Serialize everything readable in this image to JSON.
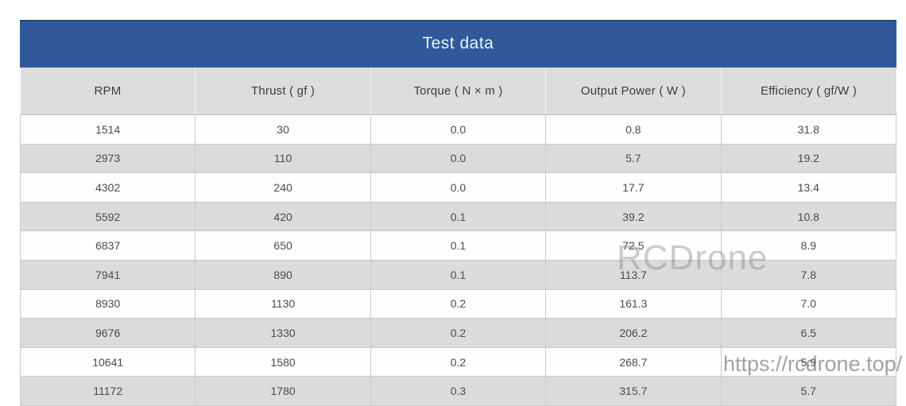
{
  "chart_data": {
    "type": "table",
    "title": "Test data",
    "columns": [
      "RPM",
      "Thrust ( gf )",
      "Torque ( N × m )",
      "Output Power ( W )",
      "Efficiency ( gf/W )"
    ],
    "rows": [
      [
        "1514",
        "30",
        "0.0",
        "0.8",
        "31.8"
      ],
      [
        "2973",
        "110",
        "0.0",
        "5.7",
        "19.2"
      ],
      [
        "4302",
        "240",
        "0.0",
        "17.7",
        "13.4"
      ],
      [
        "5592",
        "420",
        "0.1",
        "39.2",
        "10.8"
      ],
      [
        "6837",
        "650",
        "0.1",
        "72.5",
        "8.9"
      ],
      [
        "7941",
        "890",
        "0.1",
        "113.7",
        "7.8"
      ],
      [
        "8930",
        "1130",
        "0.2",
        "161.3",
        "7.0"
      ],
      [
        "9676",
        "1330",
        "0.2",
        "206.2",
        "6.5"
      ],
      [
        "10641",
        "1580",
        "0.2",
        "268.7",
        "5.9"
      ],
      [
        "11172",
        "1780",
        "0.3",
        "315.7",
        "5.7"
      ]
    ],
    "layout": {
      "title_position": "top-banner",
      "row_striping": "even-rows-gray",
      "grid": true
    }
  },
  "watermarks": {
    "brand": "RCDrone",
    "url": "https://rcdrone.top/"
  },
  "colors": {
    "title_bar": "#30599c",
    "title_text": "#eef3fa",
    "header_row": "#dcdcdc",
    "row": "#fefefe",
    "row_alt": "#dbdbdb",
    "border": "#c9c9c9",
    "cell_text": "#4b4b4b"
  }
}
